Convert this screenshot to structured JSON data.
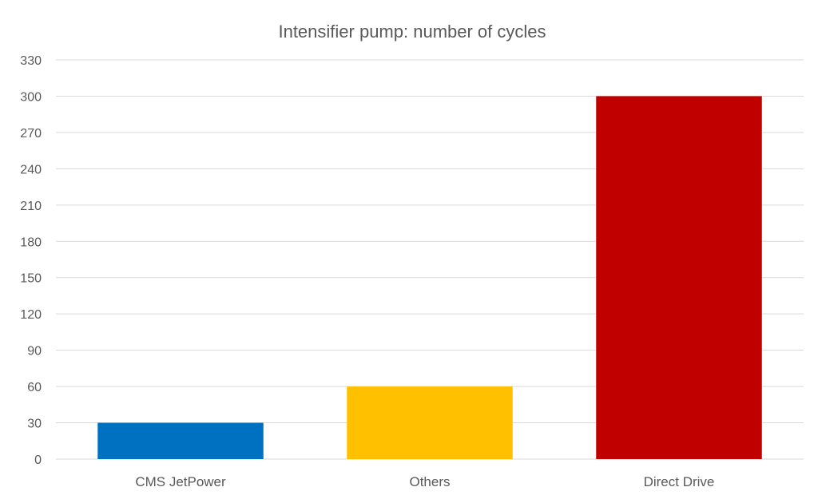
{
  "chart_data": {
    "type": "bar",
    "title": "Intensifier pump: number of cycles",
    "xlabel": "",
    "ylabel": "",
    "categories": [
      "CMS JetPower",
      "Others",
      "Direct Drive"
    ],
    "values": [
      30,
      60,
      300
    ],
    "colors": [
      "#0070c0",
      "#ffc000",
      "#c00000"
    ],
    "ylim": [
      0,
      330
    ],
    "yticks": [
      0,
      30,
      60,
      90,
      120,
      150,
      180,
      210,
      240,
      270,
      300,
      330
    ],
    "grid": true,
    "legend": "none"
  },
  "style": {
    "grid_color": "#d9d9d9",
    "text_color": "#595959"
  }
}
